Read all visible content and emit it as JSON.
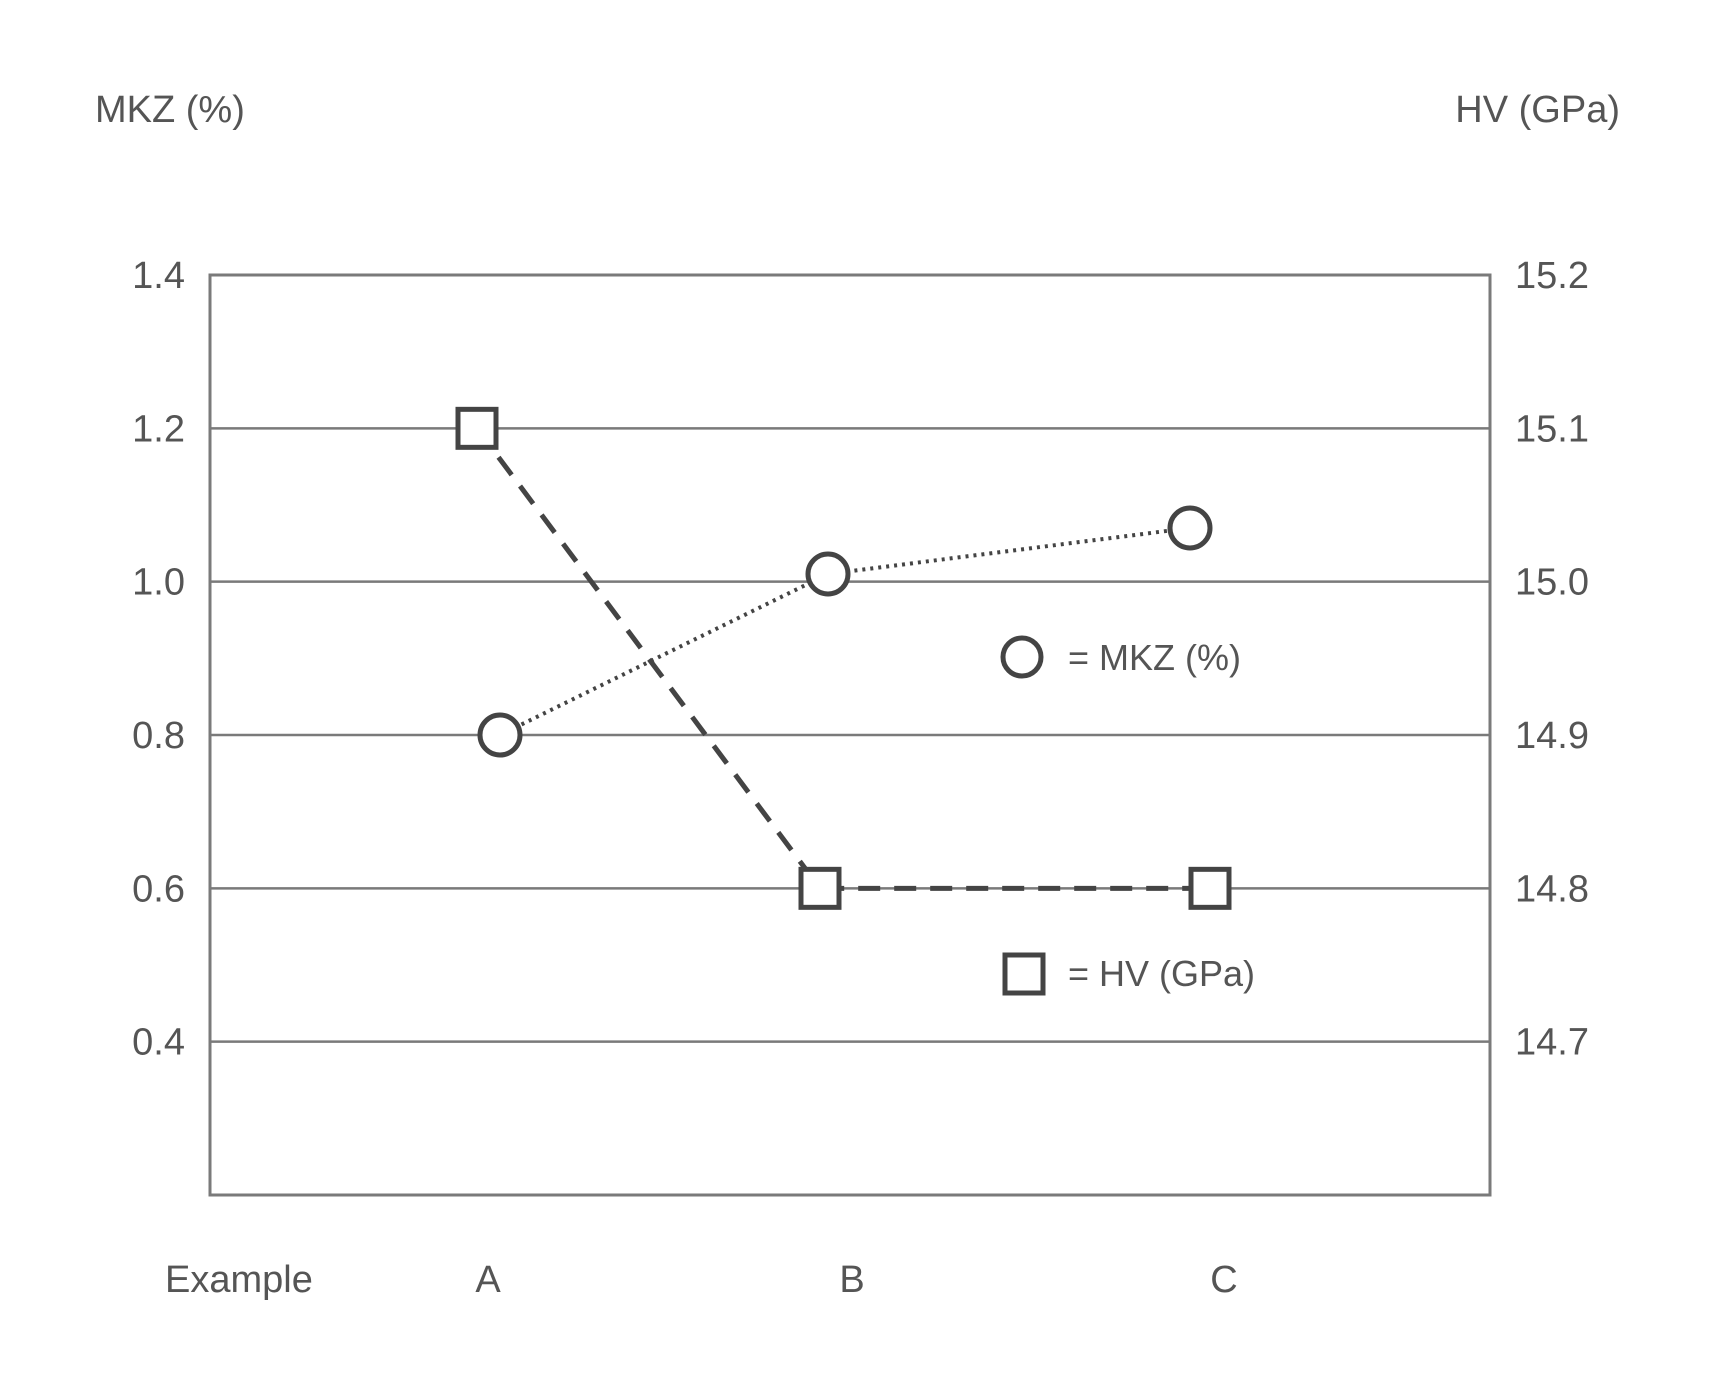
{
  "chart_data": {
    "type": "line",
    "categories_label": "Example",
    "categories": [
      "A",
      "B",
      "C"
    ],
    "left_axis": {
      "label": "MKZ (%)",
      "ticks": [
        "1.4",
        "1.2",
        "1.0",
        "0.8",
        "0.6",
        "0.4"
      ],
      "tick_values": [
        1.4,
        1.2,
        1.0,
        0.8,
        0.6,
        0.4
      ],
      "ylim": [
        0.2,
        1.4
      ]
    },
    "right_axis": {
      "label": "HV (GPa)",
      "ticks": [
        "15.2",
        "15.1",
        "15.0",
        "14.9",
        "14.8",
        "14.7"
      ],
      "tick_values": [
        15.2,
        15.1,
        15.0,
        14.9,
        14.8,
        14.7
      ],
      "ylim": [
        14.6,
        15.2
      ]
    },
    "grid": true,
    "legend_placement": "center-right",
    "series": [
      {
        "name": "MKZ (%)",
        "legend_text": "= MKZ (%)",
        "axis": "left",
        "marker": "circle",
        "line_style": "dotted",
        "values": [
          0.8,
          1.01,
          1.07
        ]
      },
      {
        "name": "HV (GPa)",
        "legend_text": "= HV (GPa)",
        "axis": "right",
        "marker": "square",
        "line_style": "dashed",
        "values": [
          15.1,
          14.8,
          14.8
        ]
      }
    ],
    "colors": {
      "line": "#444444",
      "grid": "#7a7a7a",
      "text": "#555555"
    }
  }
}
